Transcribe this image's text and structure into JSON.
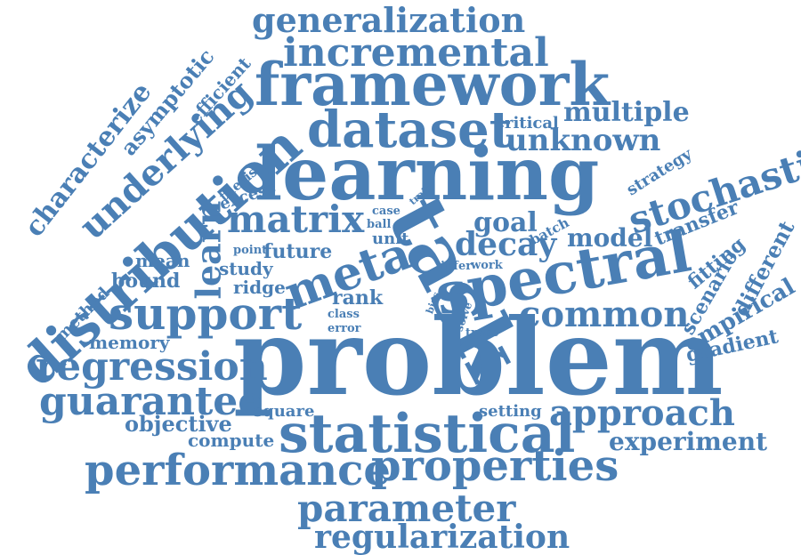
{
  "words": [
    "generalization",
    "incremental",
    "framework",
    "dataset",
    "critical",
    "multiple",
    "unknown",
    "learning",
    "stochastic",
    "strategy",
    "characterize",
    "asymptotic",
    "efficient",
    "underlying",
    "distribution",
    "thesis",
    "excess",
    "matrix",
    "task",
    "case",
    "ball",
    "unit",
    "train",
    "goal",
    "batch",
    "decay",
    "model",
    "transfer",
    "fitting",
    "learn",
    "point",
    "future",
    "meta",
    "spectral",
    "scenario",
    "different",
    "mean",
    "study",
    "ridge",
    "bound",
    "infer",
    "work",
    "rank",
    "support",
    "bias",
    "class",
    "common",
    "empirical",
    "method",
    "error",
    "solve",
    "trace",
    "memory",
    "problem",
    "gradient",
    "regression",
    "guarantee",
    "square",
    "setting",
    "approach",
    "objective",
    "compute",
    "statistical",
    "experiment",
    "performance",
    "properties",
    "parameter",
    "regularization"
  ],
  "colors": {
    "word": "#4a7fb5",
    "background": "#ffffff"
  }
}
